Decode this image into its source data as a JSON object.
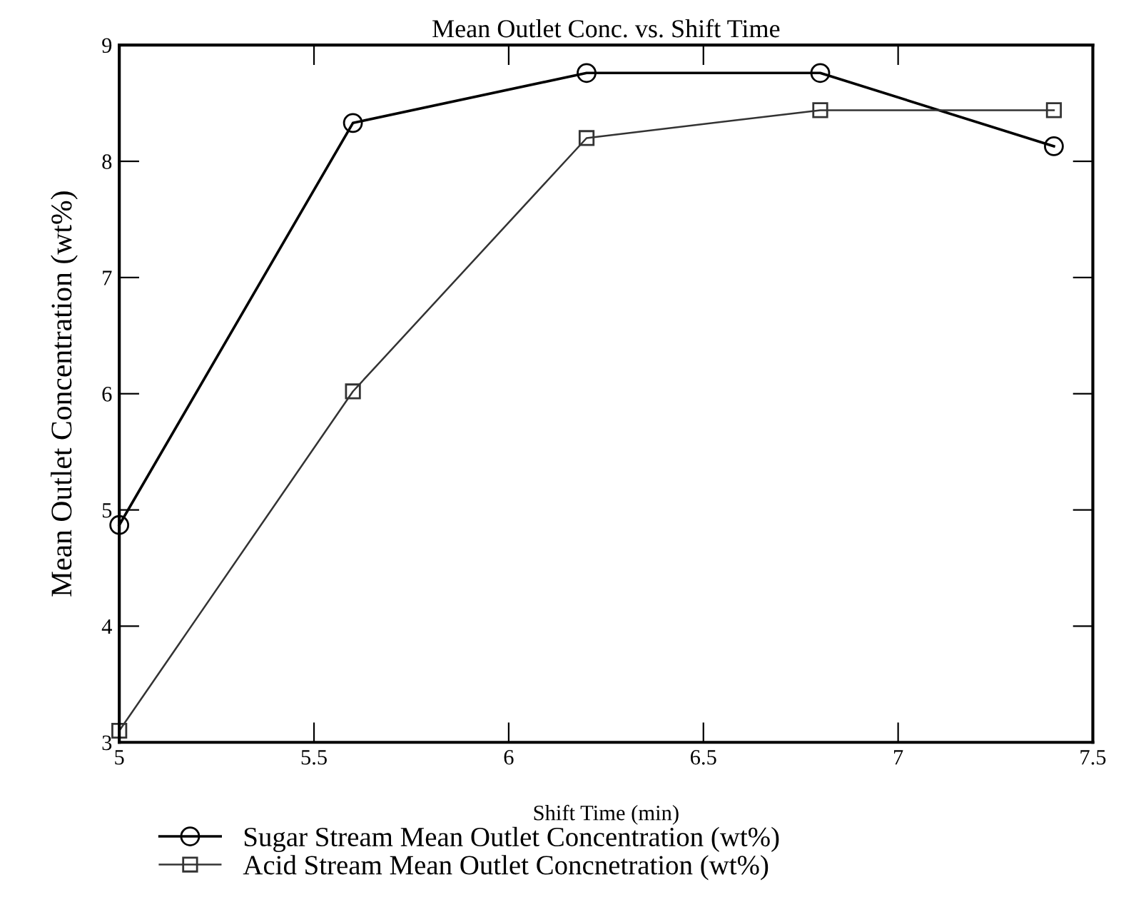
{
  "chart_data": {
    "type": "line",
    "title": "Mean Outlet Conc. vs. Shift Time",
    "xlabel": "Shift Time (min)",
    "ylabel": "Mean Outlet Concentration (wt%)",
    "x": [
      5,
      5.6,
      6.2,
      6.8,
      7.4
    ],
    "series": [
      {
        "name": "Sugar Stream Mean Outlet Concentration (wt%)",
        "color": "#000000",
        "marker": "circle",
        "values": [
          4.87,
          8.33,
          8.76,
          8.76,
          8.13
        ]
      },
      {
        "name": "Acid Stream Mean Outlet Concnetration (wt%)",
        "color": "#333333",
        "marker": "square",
        "values": [
          3.1,
          6.02,
          8.2,
          8.44,
          8.44
        ]
      }
    ],
    "xlim": [
      5,
      7.5
    ],
    "xticks": [
      5,
      5.5,
      6,
      6.5,
      7,
      7.5
    ],
    "ylim": [
      3,
      9
    ],
    "yticks": [
      3,
      4,
      5,
      6,
      7,
      8,
      9
    ],
    "grid": false,
    "legend": "bottom",
    "line_style": "solid"
  }
}
